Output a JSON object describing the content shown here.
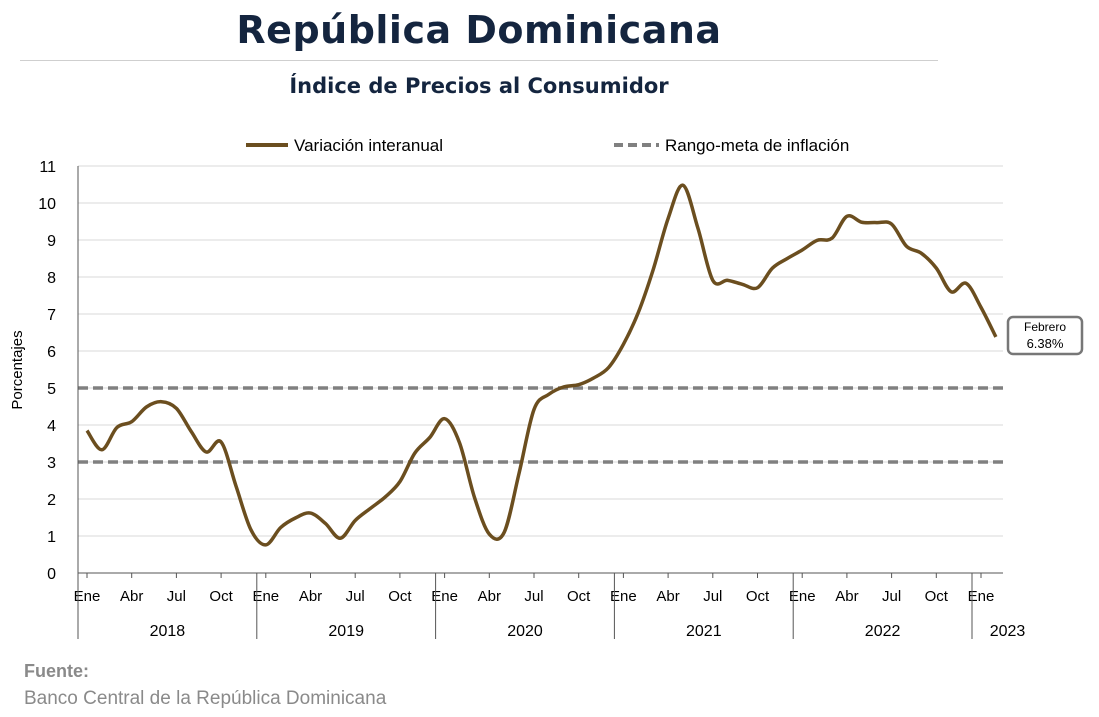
{
  "header": {
    "title": "República Dominicana",
    "subtitle": "Índice de Precios al Consumidor"
  },
  "footer": {
    "source_label": "Fuente:",
    "source_text": "Banco Central de la República Dominicana"
  },
  "chart_data": {
    "type": "line",
    "ylabel": "Porcentajes",
    "ylim": [
      0,
      11
    ],
    "yticks": [
      0,
      1,
      2,
      3,
      4,
      5,
      6,
      7,
      8,
      9,
      10,
      11
    ],
    "grid": true,
    "legend_position": "top",
    "month_tick_labels": [
      "Ene",
      "Abr",
      "Jul",
      "Oct"
    ],
    "years": [
      "2018",
      "2019",
      "2020",
      "2021",
      "2022",
      "2023"
    ],
    "series": [
      {
        "name": "Variación interanual",
        "color": "#6b4e1f",
        "style": "solid",
        "x": [
          "2018-01",
          "2018-02",
          "2018-03",
          "2018-04",
          "2018-05",
          "2018-06",
          "2018-07",
          "2018-08",
          "2018-09",
          "2018-10",
          "2018-11",
          "2018-12",
          "2019-01",
          "2019-02",
          "2019-03",
          "2019-04",
          "2019-05",
          "2019-06",
          "2019-07",
          "2019-08",
          "2019-09",
          "2019-10",
          "2019-11",
          "2019-12",
          "2020-01",
          "2020-02",
          "2020-03",
          "2020-04",
          "2020-05",
          "2020-06",
          "2020-07",
          "2020-08",
          "2020-09",
          "2020-10",
          "2020-11",
          "2020-12",
          "2021-01",
          "2021-02",
          "2021-03",
          "2021-04",
          "2021-05",
          "2021-06",
          "2021-07",
          "2021-08",
          "2021-09",
          "2021-10",
          "2021-11",
          "2021-12",
          "2022-01",
          "2022-02",
          "2022-03",
          "2022-04",
          "2022-05",
          "2022-06",
          "2022-07",
          "2022-08",
          "2022-09",
          "2022-10",
          "2022-11",
          "2022-12",
          "2023-01",
          "2023-02"
        ],
        "values": [
          3.85,
          3.33,
          3.93,
          4.09,
          4.49,
          4.63,
          4.45,
          3.82,
          3.27,
          3.54,
          2.35,
          1.17,
          0.76,
          1.23,
          1.49,
          1.62,
          1.34,
          0.94,
          1.42,
          1.74,
          2.05,
          2.47,
          3.24,
          3.66,
          4.17,
          3.52,
          2.05,
          1.05,
          1.1,
          2.7,
          4.42,
          4.83,
          5.03,
          5.09,
          5.27,
          5.55,
          6.18,
          7.04,
          8.2,
          9.58,
          10.48,
          9.32,
          7.91,
          7.91,
          7.8,
          7.71,
          8.24,
          8.5,
          8.73,
          8.99,
          9.05,
          9.64,
          9.48,
          9.47,
          9.43,
          8.83,
          8.64,
          8.24,
          7.6,
          7.83,
          7.18,
          6.38
        ]
      },
      {
        "name": "Rango-meta de inflación",
        "color": "#808080",
        "style": "dashed",
        "lower": 3,
        "upper": 5
      }
    ],
    "annotation": {
      "label": "Febrero",
      "value_text": "6.38%"
    }
  }
}
